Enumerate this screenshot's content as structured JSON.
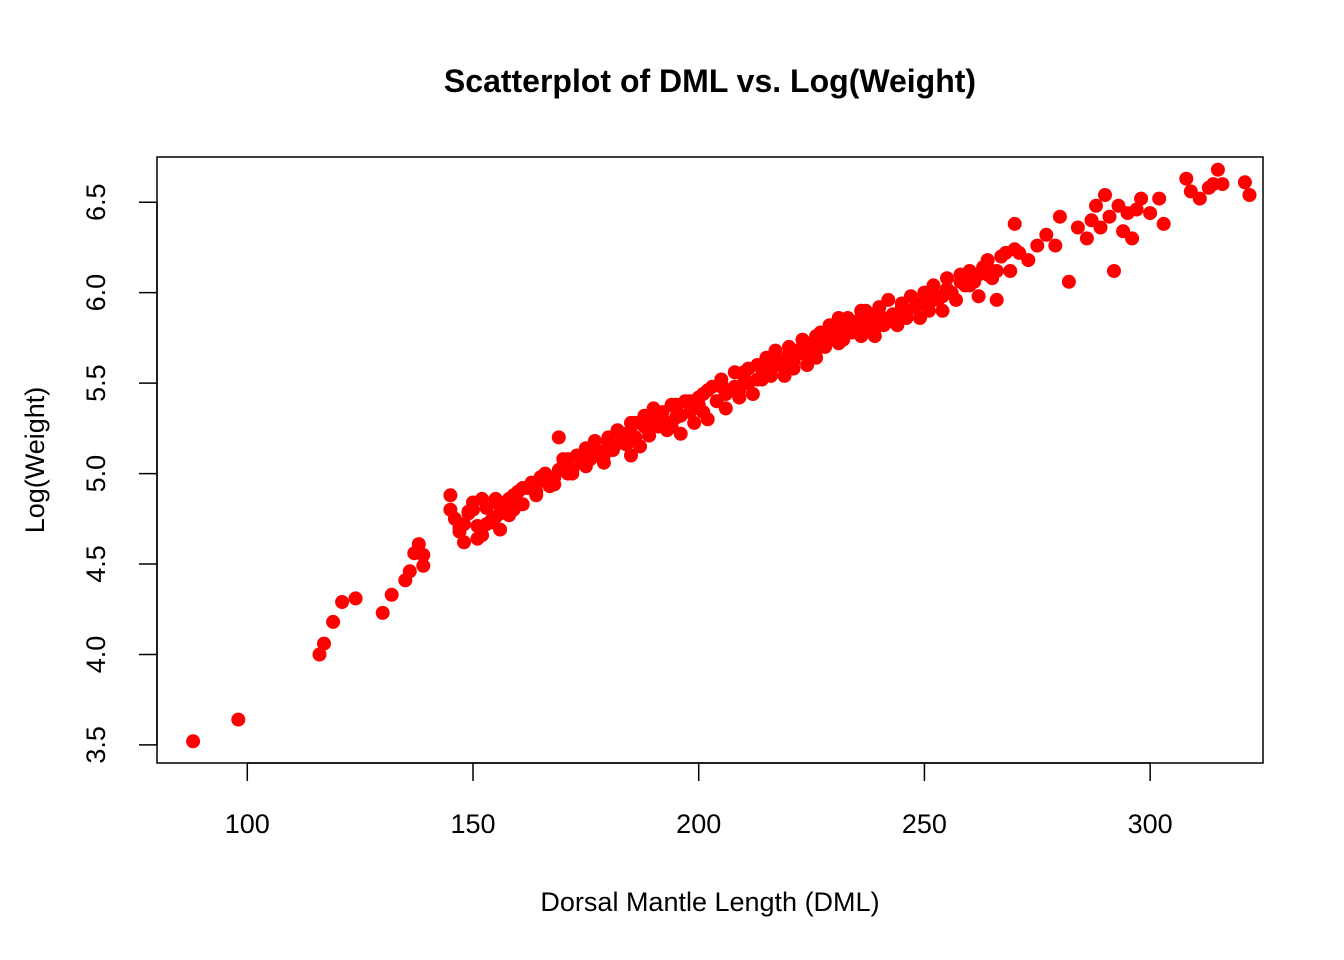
{
  "chart_data": {
    "type": "scatter",
    "title": "Scatterplot of DML vs. Log(Weight)",
    "xlabel": "Dorsal Mantle Length (DML)",
    "ylabel": "Log(Weight)",
    "xlim": [
      80,
      325
    ],
    "ylim": [
      3.4,
      6.75
    ],
    "xticks": [
      100,
      150,
      200,
      250,
      300
    ],
    "yticks": [
      3.5,
      4.0,
      4.5,
      5.0,
      5.5,
      6.0,
      6.5
    ],
    "xtick_labels": [
      "100",
      "150",
      "200",
      "250",
      "300"
    ],
    "ytick_labels": [
      "3.5",
      "4.0",
      "4.5",
      "5.0",
      "5.5",
      "6.0",
      "6.5"
    ],
    "grid": false,
    "point_color": "#ff0000",
    "series": [
      {
        "x": [
          88,
          98,
          116,
          117,
          119,
          121,
          124,
          130,
          132,
          135,
          136,
          137,
          138,
          139,
          139,
          145,
          146,
          147,
          148,
          149,
          150,
          151,
          152,
          153,
          154,
          155,
          156,
          157,
          158,
          159,
          160,
          161,
          162,
          163,
          164,
          165,
          166,
          167,
          168,
          169,
          170,
          171,
          172,
          173,
          174,
          175,
          176,
          177,
          178,
          179,
          180,
          181,
          182,
          183,
          184,
          185,
          186,
          187,
          188,
          189,
          190,
          191,
          192,
          193,
          194,
          195,
          196,
          197,
          198,
          199,
          200,
          201,
          202,
          203,
          204,
          205,
          206,
          207,
          208,
          209,
          210,
          211,
          212,
          213,
          214,
          215,
          216,
          217,
          218,
          219,
          220,
          221,
          222,
          223,
          224,
          225,
          226,
          227,
          228,
          229,
          230,
          231,
          232,
          233,
          234,
          235,
          236,
          237,
          238,
          239,
          240,
          241,
          242,
          243,
          244,
          245,
          246,
          247,
          248,
          249,
          250,
          251,
          252,
          253,
          254,
          255,
          256,
          257,
          258,
          259,
          260,
          261,
          262,
          263,
          264,
          265,
          266,
          267,
          268,
          269,
          270,
          271,
          273,
          275,
          277,
          279,
          280,
          282,
          284,
          286,
          287,
          288,
          289,
          290,
          291,
          292,
          293,
          294,
          295,
          296,
          297,
          298,
          300,
          302,
          303,
          308,
          309,
          311,
          313,
          314,
          315,
          316,
          321,
          322,
          147,
          150,
          152,
          154,
          156,
          158,
          160,
          163,
          165,
          168,
          170,
          172,
          175,
          178,
          180,
          183,
          185,
          188,
          190,
          192,
          195,
          198,
          200,
          202,
          205,
          208,
          210,
          213,
          215,
          218,
          220,
          222,
          225,
          228,
          230,
          232,
          235,
          238,
          240,
          242,
          245,
          248,
          250,
          252,
          255,
          258,
          260,
          262,
          265,
          149,
          153,
          157,
          161,
          166,
          171,
          176,
          181,
          186,
          191,
          196,
          201,
          206,
          211,
          216,
          221,
          226,
          231,
          236,
          241,
          246,
          251,
          256,
          261,
          266,
          270,
          151,
          155,
          159,
          164,
          169,
          174,
          179,
          184,
          189,
          194,
          199,
          204,
          209,
          214,
          219,
          224,
          229,
          234,
          239,
          244,
          249,
          254,
          259,
          264,
          227,
          233,
          237,
          243,
          223,
          217,
          145,
          148,
          152,
          156,
          160,
          165,
          170,
          175,
          180,
          185,
          190,
          195,
          200,
          205,
          210,
          215,
          220,
          225,
          230,
          235,
          240,
          245,
          250,
          255,
          228,
          232,
          236,
          224,
          229,
          234,
          239,
          226,
          231
        ],
        "y": [
          3.52,
          3.64,
          4.0,
          4.06,
          4.18,
          4.29,
          4.31,
          4.23,
          4.33,
          4.41,
          4.46,
          4.56,
          4.61,
          4.49,
          4.55,
          4.88,
          4.75,
          4.68,
          4.62,
          4.79,
          4.84,
          4.71,
          4.66,
          4.81,
          4.73,
          4.86,
          4.69,
          4.82,
          4.77,
          4.88,
          4.9,
          4.83,
          4.92,
          4.95,
          4.88,
          4.96,
          5.0,
          4.93,
          4.98,
          5.2,
          5.04,
          5.08,
          5.02,
          5.1,
          5.06,
          5.14,
          5.08,
          5.18,
          5.12,
          5.06,
          5.2,
          5.13,
          5.24,
          5.17,
          5.22,
          5.1,
          5.28,
          5.15,
          5.32,
          5.21,
          5.36,
          5.26,
          5.3,
          5.24,
          5.38,
          5.31,
          5.22,
          5.4,
          5.34,
          5.28,
          5.38,
          5.44,
          5.3,
          5.48,
          5.4,
          5.52,
          5.36,
          5.46,
          5.56,
          5.42,
          5.5,
          5.58,
          5.44,
          5.6,
          5.52,
          5.64,
          5.56,
          5.68,
          5.6,
          5.54,
          5.7,
          5.62,
          5.66,
          5.74,
          5.6,
          5.72,
          5.68,
          5.78,
          5.7,
          5.82,
          5.76,
          5.8,
          5.74,
          5.86,
          5.78,
          5.84,
          5.9,
          5.8,
          5.88,
          5.76,
          5.92,
          5.84,
          5.96,
          5.88,
          5.82,
          5.94,
          5.88,
          5.98,
          5.92,
          5.86,
          6.0,
          5.94,
          6.04,
          5.96,
          5.9,
          6.08,
          6.0,
          5.96,
          6.1,
          6.04,
          6.12,
          6.06,
          5.98,
          6.14,
          6.18,
          6.08,
          5.96,
          6.2,
          6.22,
          6.12,
          6.38,
          6.22,
          6.18,
          6.26,
          6.32,
          6.26,
          6.42,
          6.06,
          6.36,
          6.3,
          6.4,
          6.48,
          6.36,
          6.54,
          6.42,
          6.12,
          6.48,
          6.34,
          6.44,
          6.3,
          6.46,
          6.52,
          6.44,
          6.52,
          6.38,
          6.63,
          6.56,
          6.52,
          6.58,
          6.6,
          6.68,
          6.6,
          6.61,
          6.54,
          4.7,
          4.8,
          4.66,
          4.74,
          4.82,
          4.86,
          4.9,
          4.94,
          4.98,
          4.94,
          5.08,
          5.0,
          5.04,
          5.1,
          5.16,
          5.2,
          5.22,
          5.26,
          5.3,
          5.34,
          5.36,
          5.4,
          5.42,
          5.46,
          5.5,
          5.48,
          5.56,
          5.52,
          5.6,
          5.62,
          5.64,
          5.68,
          5.7,
          5.72,
          5.74,
          5.78,
          5.8,
          5.82,
          5.86,
          5.84,
          5.9,
          5.92,
          5.96,
          6.0,
          6.02,
          6.06,
          6.04,
          6.1,
          6.12,
          4.78,
          4.72,
          4.84,
          4.92,
          4.96,
          5.0,
          5.12,
          5.14,
          5.2,
          5.28,
          5.32,
          5.34,
          5.44,
          5.5,
          5.54,
          5.58,
          5.64,
          5.72,
          5.76,
          5.82,
          5.86,
          5.9,
          6.0,
          6.06,
          6.12,
          6.24,
          4.64,
          4.76,
          4.8,
          4.9,
          5.02,
          5.06,
          5.1,
          5.16,
          5.24,
          5.26,
          5.36,
          5.4,
          5.46,
          5.54,
          5.6,
          5.66,
          5.76,
          5.8,
          5.84,
          5.88,
          5.94,
          5.98,
          6.08,
          6.1,
          5.72,
          5.82,
          5.9,
          5.88,
          5.7,
          5.64,
          4.8,
          4.72,
          4.86,
          4.78,
          4.84,
          4.98,
          5.02,
          5.12,
          5.18,
          5.28,
          5.3,
          5.38,
          5.42,
          5.48,
          5.54,
          5.6,
          5.66,
          5.7,
          5.78,
          5.84,
          5.88,
          5.92,
          6.0,
          6.02,
          5.74,
          5.78,
          5.86,
          5.66,
          5.8,
          5.84,
          5.8,
          5.76,
          5.86
        ]
      }
    ]
  }
}
